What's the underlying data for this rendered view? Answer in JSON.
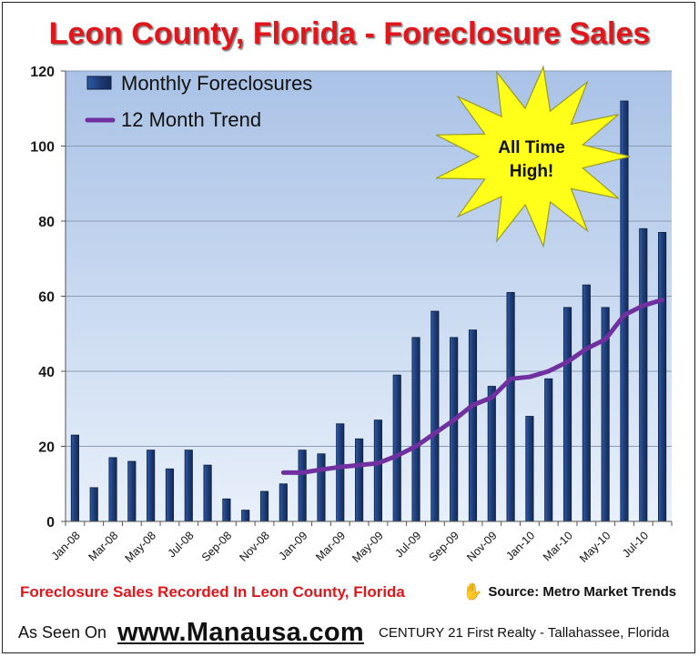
{
  "chart_data": {
    "type": "bar",
    "title": "Leon County, Florida - Foreclosure Sales",
    "categories": [
      "Jan-08",
      "Feb-08",
      "Mar-08",
      "Apr-08",
      "May-08",
      "Jun-08",
      "Jul-08",
      "Aug-08",
      "Sep-08",
      "Oct-08",
      "Nov-08",
      "Dec-08",
      "Jan-09",
      "Feb-09",
      "Mar-09",
      "Apr-09",
      "May-09",
      "Jun-09",
      "Jul-09",
      "Aug-09",
      "Sep-09",
      "Oct-09",
      "Nov-09",
      "Dec-09",
      "Jan-10",
      "Feb-10",
      "Mar-10",
      "Apr-10",
      "May-10",
      "Jun-10",
      "Jul-10",
      "Aug-10"
    ],
    "tick_labels": [
      "Jan-08",
      "Mar-08",
      "May-08",
      "Jul-08",
      "Sep-08",
      "Nov-08",
      "Jan-09",
      "Mar-09",
      "May-09",
      "Jul-09",
      "Sep-09",
      "Nov-09",
      "Jan-10",
      "Mar-10",
      "May-10",
      "Jul-10"
    ],
    "series": [
      {
        "name": "Monthly Foreclosures",
        "kind": "bar",
        "color": "#1f3d78",
        "values": [
          23,
          9,
          17,
          16,
          19,
          14,
          19,
          15,
          6,
          3,
          8,
          10,
          19,
          18,
          26,
          22,
          27,
          39,
          49,
          56,
          49,
          51,
          36,
          61,
          28,
          38,
          57,
          63,
          57,
          112,
          78,
          77
        ]
      },
      {
        "name": "12 Month Trend",
        "kind": "line",
        "color": "#7030a0",
        "values": [
          null,
          null,
          null,
          null,
          null,
          null,
          null,
          null,
          null,
          null,
          null,
          13,
          13,
          13.8,
          14.5,
          15,
          15.5,
          17.5,
          20,
          23.5,
          27,
          31,
          33,
          38,
          38.5,
          40,
          42.5,
          46,
          48.5,
          55,
          57.5,
          59
        ]
      }
    ],
    "yticks": [
      0,
      20,
      40,
      60,
      80,
      100,
      120
    ],
    "ylim": [
      0,
      120
    ],
    "grid": true,
    "legend_position": "top-left",
    "annotation": "All Time High!",
    "colors": {
      "title": "#e0161b",
      "plot_bg_top": "#a9c2e6",
      "plot_bg_bottom": "#e8f0fa",
      "burst": "#ffff1a"
    }
  },
  "footer": {
    "caption": "Foreclosure Sales Recorded In Leon County, Florida",
    "source": "Source: Metro Market Trends",
    "hand_icon": "✋",
    "as_seen_on": "As Seen On",
    "website": "www.Manausa.com",
    "company": "CENTURY 21 First Realty - Tallahassee, Florida"
  }
}
